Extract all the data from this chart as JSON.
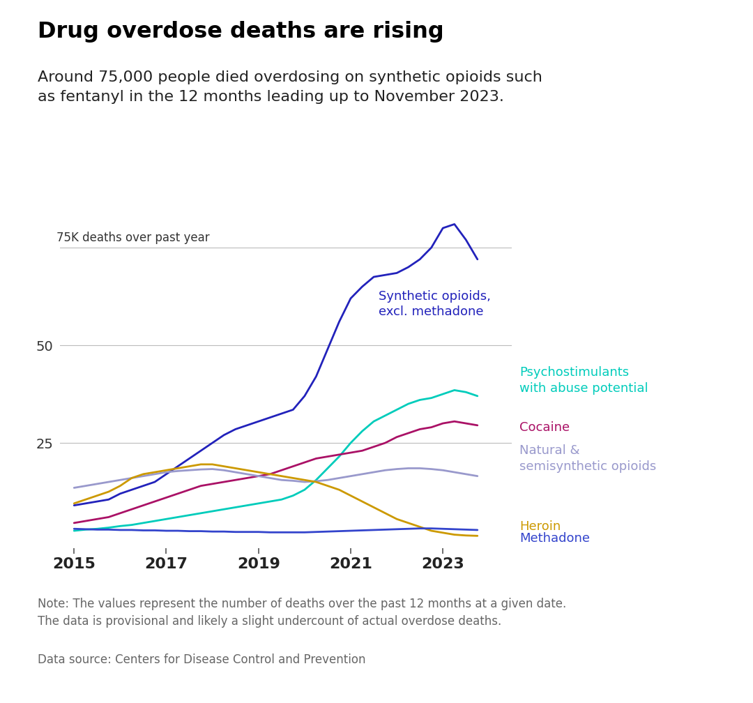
{
  "title": "Drug overdose deaths are rising",
  "subtitle": "Around 75,000 people died overdosing on synthetic opioids such\nas fentanyl in the 12 months leading up to November 2023.",
  "ylabel": "75K deaths over past year",
  "note": "Note: The values represent the number of deaths over the past 12 months at a given date.\nThe data is provisional and likely a slight undercount of actual overdose deaths.",
  "source": "Data source: Centers for Disease Control and Prevention",
  "xlim": [
    2014.7,
    2024.5
  ],
  "ylim": [
    -2,
    88
  ],
  "yticks": [
    25,
    50,
    75
  ],
  "xticks": [
    2015,
    2017,
    2019,
    2021,
    2023
  ],
  "background_color": "#ffffff",
  "series": {
    "synthetic_opioids": {
      "label": "Synthetic opioids,\nexcl. methadone",
      "color": "#2222bb",
      "x": [
        2015.0,
        2015.25,
        2015.5,
        2015.75,
        2016.0,
        2016.25,
        2016.5,
        2016.75,
        2017.0,
        2017.25,
        2017.5,
        2017.75,
        2018.0,
        2018.25,
        2018.5,
        2018.75,
        2019.0,
        2019.25,
        2019.5,
        2019.75,
        2020.0,
        2020.25,
        2020.5,
        2020.75,
        2021.0,
        2021.25,
        2021.5,
        2021.75,
        2022.0,
        2022.25,
        2022.5,
        2022.75,
        2023.0,
        2023.25,
        2023.5,
        2023.75
      ],
      "y": [
        9,
        9.5,
        10,
        10.5,
        12,
        13,
        14,
        15,
        17,
        19,
        21,
        23,
        25,
        27,
        28.5,
        29.5,
        30.5,
        31.5,
        32.5,
        33.5,
        37,
        42,
        49,
        56,
        62,
        65,
        67.5,
        68,
        68.5,
        70,
        72,
        75,
        80,
        81,
        77,
        72
      ]
    },
    "psychostimulants": {
      "label": "Psychostimulants\nwith abuse potential",
      "color": "#00ccbb",
      "x": [
        2015.0,
        2015.25,
        2015.5,
        2015.75,
        2016.0,
        2016.25,
        2016.5,
        2016.75,
        2017.0,
        2017.25,
        2017.5,
        2017.75,
        2018.0,
        2018.25,
        2018.5,
        2018.75,
        2019.0,
        2019.25,
        2019.5,
        2019.75,
        2020.0,
        2020.25,
        2020.5,
        2020.75,
        2021.0,
        2021.25,
        2021.5,
        2021.75,
        2022.0,
        2022.25,
        2022.5,
        2022.75,
        2023.0,
        2023.25,
        2023.5,
        2023.75
      ],
      "y": [
        2.5,
        2.8,
        3.0,
        3.3,
        3.7,
        4.0,
        4.5,
        5.0,
        5.5,
        6.0,
        6.5,
        7.0,
        7.5,
        8.0,
        8.5,
        9.0,
        9.5,
        10.0,
        10.5,
        11.5,
        13,
        15.5,
        18.5,
        21.5,
        25,
        28,
        30.5,
        32,
        33.5,
        35,
        36,
        36.5,
        37.5,
        38.5,
        38,
        37
      ]
    },
    "cocaine": {
      "label": "Cocaine",
      "color": "#aa1166",
      "x": [
        2015.0,
        2015.25,
        2015.5,
        2015.75,
        2016.0,
        2016.25,
        2016.5,
        2016.75,
        2017.0,
        2017.25,
        2017.5,
        2017.75,
        2018.0,
        2018.25,
        2018.5,
        2018.75,
        2019.0,
        2019.25,
        2019.5,
        2019.75,
        2020.0,
        2020.25,
        2020.5,
        2020.75,
        2021.0,
        2021.25,
        2021.5,
        2021.75,
        2022.0,
        2022.25,
        2022.5,
        2022.75,
        2023.0,
        2023.25,
        2023.5,
        2023.75
      ],
      "y": [
        4.5,
        5.0,
        5.5,
        6.0,
        7.0,
        8.0,
        9.0,
        10.0,
        11.0,
        12.0,
        13.0,
        14.0,
        14.5,
        15.0,
        15.5,
        16.0,
        16.5,
        17.0,
        18.0,
        19.0,
        20.0,
        21.0,
        21.5,
        22.0,
        22.5,
        23.0,
        24.0,
        25.0,
        26.5,
        27.5,
        28.5,
        29.0,
        30.0,
        30.5,
        30.0,
        29.5
      ]
    },
    "natural_semisynthetic": {
      "label": "Natural &\nsemisynthetic opioids",
      "color": "#9999cc",
      "x": [
        2015.0,
        2015.25,
        2015.5,
        2015.75,
        2016.0,
        2016.25,
        2016.5,
        2016.75,
        2017.0,
        2017.25,
        2017.5,
        2017.75,
        2018.0,
        2018.25,
        2018.5,
        2018.75,
        2019.0,
        2019.25,
        2019.5,
        2019.75,
        2020.0,
        2020.25,
        2020.5,
        2020.75,
        2021.0,
        2021.25,
        2021.5,
        2021.75,
        2022.0,
        2022.25,
        2022.5,
        2022.75,
        2023.0,
        2023.25,
        2023.5,
        2023.75
      ],
      "y": [
        13.5,
        14.0,
        14.5,
        15.0,
        15.5,
        16.0,
        16.5,
        17.0,
        17.5,
        17.8,
        18.0,
        18.2,
        18.3,
        18.0,
        17.5,
        17.0,
        16.5,
        16.0,
        15.5,
        15.3,
        15.0,
        15.2,
        15.5,
        16.0,
        16.5,
        17.0,
        17.5,
        18.0,
        18.3,
        18.5,
        18.5,
        18.3,
        18.0,
        17.5,
        17.0,
        16.5
      ]
    },
    "heroin": {
      "label": "Heroin",
      "color": "#cc9900",
      "x": [
        2015.0,
        2015.25,
        2015.5,
        2015.75,
        2016.0,
        2016.25,
        2016.5,
        2016.75,
        2017.0,
        2017.25,
        2017.5,
        2017.75,
        2018.0,
        2018.25,
        2018.5,
        2018.75,
        2019.0,
        2019.25,
        2019.5,
        2019.75,
        2020.0,
        2020.25,
        2020.5,
        2020.75,
        2021.0,
        2021.25,
        2021.5,
        2021.75,
        2022.0,
        2022.25,
        2022.5,
        2022.75,
        2023.0,
        2023.25,
        2023.5,
        2023.75
      ],
      "y": [
        9.5,
        10.5,
        11.5,
        12.5,
        14.0,
        16.0,
        17.0,
        17.5,
        18.0,
        18.5,
        19.0,
        19.5,
        19.5,
        19.0,
        18.5,
        18.0,
        17.5,
        17.0,
        16.5,
        16.0,
        15.5,
        15.0,
        14.0,
        13.0,
        11.5,
        10.0,
        8.5,
        7.0,
        5.5,
        4.5,
        3.5,
        2.5,
        2.0,
        1.5,
        1.3,
        1.2
      ]
    },
    "methadone": {
      "label": "Methadone",
      "color": "#3344cc",
      "x": [
        2015.0,
        2015.25,
        2015.5,
        2015.75,
        2016.0,
        2016.25,
        2016.5,
        2016.75,
        2017.0,
        2017.25,
        2017.5,
        2017.75,
        2018.0,
        2018.25,
        2018.5,
        2018.75,
        2019.0,
        2019.25,
        2019.5,
        2019.75,
        2020.0,
        2020.25,
        2020.5,
        2020.75,
        2021.0,
        2021.25,
        2021.5,
        2021.75,
        2022.0,
        2022.25,
        2022.5,
        2022.75,
        2023.0,
        2023.25,
        2023.5,
        2023.75
      ],
      "y": [
        3.0,
        2.9,
        2.8,
        2.8,
        2.7,
        2.7,
        2.6,
        2.6,
        2.5,
        2.5,
        2.4,
        2.4,
        2.3,
        2.3,
        2.2,
        2.2,
        2.2,
        2.1,
        2.1,
        2.1,
        2.1,
        2.2,
        2.3,
        2.4,
        2.5,
        2.6,
        2.7,
        2.8,
        2.9,
        3.0,
        3.1,
        3.1,
        3.0,
        2.9,
        2.8,
        2.7
      ]
    }
  }
}
